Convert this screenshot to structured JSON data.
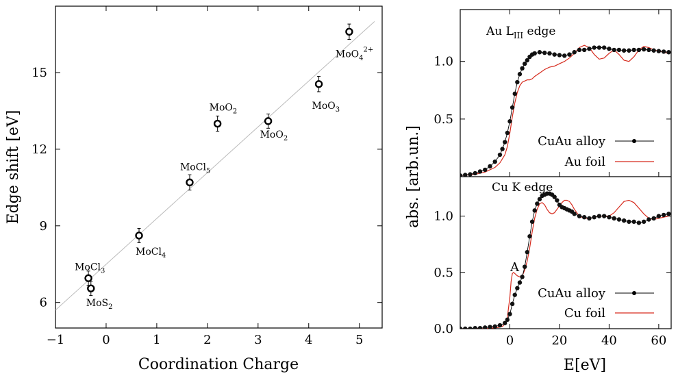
{
  "chart_data": [
    {
      "type": "scatter",
      "xlabel": "Coordination Charge",
      "ylabel": "Edge shift [eV]",
      "xlim": [
        -1,
        5.45
      ],
      "ylim": [
        5,
        17.6
      ],
      "xticks": [
        "−1",
        "0",
        "1",
        "2",
        "3",
        "4",
        "5"
      ],
      "yticks": [
        "6",
        "9",
        "12",
        "15"
      ],
      "grid": false,
      "fit_line": {
        "x": [
          -1,
          5.3
        ],
        "y": [
          5.7,
          17.0
        ]
      },
      "series": [
        {
          "points": [
            {
              "label": "MoCl",
              "sub": "3",
              "sup": "",
              "x": -0.35,
              "y": 6.95,
              "err": 0.28
            },
            {
              "label": "MoS",
              "sub": "2",
              "sup": "",
              "x": -0.3,
              "y": 6.55,
              "err": 0.28
            },
            {
              "label": "MoCl",
              "sub": "4",
              "sup": "",
              "x": 0.65,
              "y": 8.62,
              "err": 0.28
            },
            {
              "label": "MoCl",
              "sub": "5",
              "sup": "",
              "x": 1.65,
              "y": 10.7,
              "err": 0.3
            },
            {
              "label": "MoO",
              "sub": "2",
              "sup": "",
              "x": 2.2,
              "y": 13.0,
              "err": 0.3
            },
            {
              "label": "MoO",
              "sub": "2",
              "sup": "",
              "x": 3.2,
              "y": 13.1,
              "err": 0.28
            },
            {
              "label": "MoO",
              "sub": "3",
              "sup": "",
              "x": 4.2,
              "y": 14.55,
              "err": 0.3
            },
            {
              "label": "MoO",
              "sub": "4",
              "sup": "2+",
              "x": 4.8,
              "y": 16.6,
              "err": 0.3
            }
          ]
        }
      ]
    },
    {
      "type": "line",
      "panel_title": "Au L",
      "panel_title_sub": "III",
      "panel_title_suffix": " edge",
      "ylabel": "abs. [arb.un.]",
      "xlim": [
        -20,
        65
      ],
      "ylim": [
        0,
        1.45
      ],
      "yticks": [
        "0.5",
        "1.0"
      ],
      "legend_position": "bottom-right",
      "series": [
        {
          "name": "CuAu alloy",
          "style": "dots-line",
          "x": [
            -20,
            -18,
            -16,
            -14,
            -12,
            -10,
            -8,
            -6,
            -4,
            -3,
            -2,
            -1,
            0,
            1,
            2,
            3,
            4,
            5,
            6,
            7,
            8,
            9,
            10,
            12,
            14,
            16,
            18,
            20,
            22,
            24,
            26,
            28,
            30,
            32,
            34,
            36,
            38,
            40,
            42,
            44,
            46,
            48,
            50,
            52,
            54,
            56,
            58,
            60,
            62,
            64
          ],
          "y": [
            0.01,
            0.015,
            0.02,
            0.03,
            0.045,
            0.06,
            0.09,
            0.13,
            0.19,
            0.24,
            0.3,
            0.38,
            0.48,
            0.6,
            0.72,
            0.82,
            0.89,
            0.94,
            0.98,
            1.01,
            1.04,
            1.06,
            1.07,
            1.08,
            1.075,
            1.07,
            1.06,
            1.055,
            1.05,
            1.06,
            1.08,
            1.1,
            1.1,
            1.11,
            1.12,
            1.12,
            1.12,
            1.11,
            1.1,
            1.1,
            1.095,
            1.095,
            1.1,
            1.1,
            1.105,
            1.1,
            1.095,
            1.09,
            1.085,
            1.08
          ]
        },
        {
          "name": "Au foil",
          "style": "line",
          "color": "#d62b1e",
          "x": [
            -20,
            -14,
            -10,
            -6,
            -4,
            -2,
            -1,
            0,
            1,
            2,
            3,
            4,
            5,
            6,
            7,
            8,
            9,
            10,
            12,
            14,
            16,
            18,
            20,
            22,
            24,
            26,
            28,
            30,
            32,
            34,
            36,
            38,
            40,
            42,
            44,
            46,
            48,
            50,
            52,
            54,
            56,
            58,
            60,
            62,
            64
          ],
          "y": [
            0.01,
            0.02,
            0.04,
            0.08,
            0.12,
            0.19,
            0.26,
            0.38,
            0.52,
            0.64,
            0.73,
            0.79,
            0.82,
            0.83,
            0.84,
            0.84,
            0.85,
            0.87,
            0.9,
            0.93,
            0.95,
            0.96,
            0.98,
            1.0,
            1.03,
            1.07,
            1.12,
            1.14,
            1.12,
            1.06,
            1.02,
            1.03,
            1.07,
            1.1,
            1.06,
            1.01,
            1.0,
            1.04,
            1.1,
            1.13,
            1.12,
            1.1,
            1.09,
            1.08,
            1.07
          ]
        }
      ]
    },
    {
      "type": "line",
      "panel_title": "Cu K edge",
      "xlabel": "E[eV]",
      "ylabel": "abs. [arb.un.]",
      "xlim": [
        -20,
        65
      ],
      "ylim": [
        0,
        1.35
      ],
      "xticks": [
        "0",
        "20",
        "40",
        "60"
      ],
      "yticks": [
        "0.0",
        "0.5",
        "1.0"
      ],
      "legend_position": "bottom-right",
      "annotation": "A",
      "series": [
        {
          "name": "CuAu alloy",
          "style": "dots-line",
          "x": [
            -20,
            -18,
            -16,
            -14,
            -12,
            -10,
            -8,
            -6,
            -4,
            -2,
            -1,
            0,
            1,
            2,
            3,
            4,
            5,
            6,
            7,
            8,
            9,
            10,
            11,
            12,
            13,
            14,
            15,
            16,
            17,
            18,
            19,
            20,
            21,
            22,
            23,
            24,
            25,
            26,
            28,
            30,
            32,
            34,
            36,
            38,
            40,
            42,
            44,
            46,
            48,
            50,
            52,
            54,
            56,
            58,
            60,
            62,
            64
          ],
          "y": [
            0.0,
            0.0,
            0.0,
            0.005,
            0.005,
            0.01,
            0.015,
            0.02,
            0.03,
            0.05,
            0.08,
            0.13,
            0.22,
            0.3,
            0.36,
            0.41,
            0.46,
            0.55,
            0.68,
            0.82,
            0.95,
            1.05,
            1.11,
            1.15,
            1.18,
            1.19,
            1.2,
            1.2,
            1.19,
            1.17,
            1.14,
            1.1,
            1.08,
            1.07,
            1.06,
            1.05,
            1.04,
            1.02,
            1.0,
            0.99,
            0.98,
            0.99,
            1.0,
            1.0,
            0.99,
            0.98,
            0.97,
            0.96,
            0.95,
            0.95,
            0.94,
            0.95,
            0.97,
            0.98,
            1.0,
            1.01,
            1.02
          ]
        },
        {
          "name": "Cu foil",
          "style": "line",
          "color": "#d62b1e",
          "x": [
            -20,
            -10,
            -5,
            -3,
            -2,
            -1,
            0,
            0.5,
            1,
            1.5,
            2,
            3,
            4,
            5,
            6,
            7,
            8,
            9,
            10,
            11,
            12,
            13,
            14,
            15,
            16,
            17,
            18,
            19,
            20,
            21,
            22,
            23,
            24,
            25,
            26,
            28,
            30,
            32,
            34,
            36,
            38,
            40,
            42,
            44,
            46,
            48,
            50,
            52,
            54,
            56,
            58,
            60,
            62,
            64
          ],
          "y": [
            0.0,
            0.0,
            0.01,
            0.02,
            0.04,
            0.1,
            0.28,
            0.42,
            0.49,
            0.5,
            0.49,
            0.47,
            0.46,
            0.47,
            0.52,
            0.6,
            0.72,
            0.86,
            0.98,
            1.06,
            1.11,
            1.12,
            1.1,
            1.06,
            1.03,
            1.02,
            1.03,
            1.06,
            1.09,
            1.12,
            1.14,
            1.14,
            1.13,
            1.1,
            1.06,
            1.0,
            0.98,
            0.98,
            0.99,
            1.0,
            1.0,
            1.0,
            1.03,
            1.08,
            1.13,
            1.14,
            1.12,
            1.07,
            1.02,
            0.98,
            0.97,
            0.98,
            0.99,
            1.0
          ]
        }
      ]
    }
  ]
}
